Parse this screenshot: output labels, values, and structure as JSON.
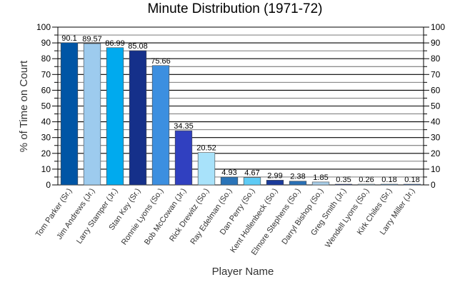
{
  "chart_data": {
    "type": "bar",
    "title": "Minute Distribution (1971-72)",
    "xlabel": "Player Name",
    "ylabel": "% of Time on Court",
    "ylim": [
      0,
      100
    ],
    "yticks": [
      0,
      10,
      20,
      30,
      40,
      50,
      60,
      70,
      80,
      90,
      100
    ],
    "grid": true,
    "right_axis": true,
    "categories": [
      "Tom Parker (Sr.)",
      "Jim Andrews (Jr.)",
      "Larry Stamper (Jr.)",
      "Stan Key (Sr.)",
      "Ronnie Lyons (So.)",
      "Bob McCowan (Jr.)",
      "Rick Drewitz (So.)",
      "Ray Edelman (So.)",
      "Dan Perry (So.)",
      "Kent Hollenbeck (So.)",
      "Elmore Stephens (So.)",
      "Darryl Bishop (So.)",
      "Greg Smith (Jr.)",
      "Wendell Lyons (So.)",
      "Kirk Chiles (Sr.)",
      "Larry Miller (Jr.)"
    ],
    "values": [
      90.1,
      89.57,
      86.99,
      85.08,
      75.66,
      34.35,
      20.52,
      4.93,
      4.67,
      2.99,
      2.38,
      1.85,
      0.35,
      0.26,
      0.18,
      0.18
    ],
    "value_labels": [
      "90.1",
      "89.57",
      "86.99",
      "85.08",
      "75.66",
      "34.35",
      "20.52",
      "4.93",
      "4.67",
      "2.99",
      "2.38",
      "1.85",
      "0.35",
      "0.26",
      "0.18",
      "0.18"
    ],
    "colors": [
      "#0055a5",
      "#9dcbee",
      "#00aaee",
      "#15308a",
      "#3c8fe0",
      "#3040c0",
      "#a8e2fa",
      "#2a74b8",
      "#5ecbf5",
      "#1a3a9a",
      "#2a70b5",
      "#a8cde8",
      "#1c3e9e",
      "#a5d8f3",
      "#5aa8e8",
      "#3070c8"
    ]
  }
}
